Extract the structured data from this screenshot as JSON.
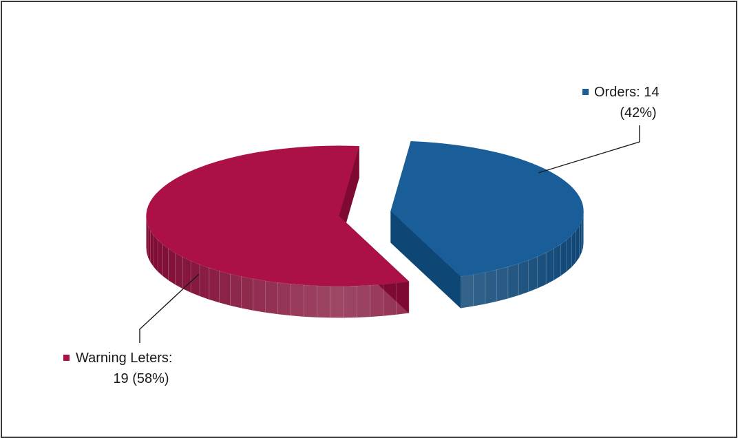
{
  "chart_data": {
    "type": "pie",
    "title": "",
    "slices": [
      {
        "label": "Orders",
        "value": 14,
        "percent": 42,
        "color": "#1a5e99",
        "side_color": "#0e4676",
        "label_line1": "Orders: 14",
        "label_line2": "(42%)"
      },
      {
        "label": "Warning Leters",
        "value": 19,
        "percent": 58,
        "color": "#ab1047",
        "side_color": "#7e0a33",
        "label_line1": "Warning Leters:",
        "label_line2": "19 (58%)"
      }
    ],
    "legend_markers": true,
    "style": "3d-exploded"
  }
}
